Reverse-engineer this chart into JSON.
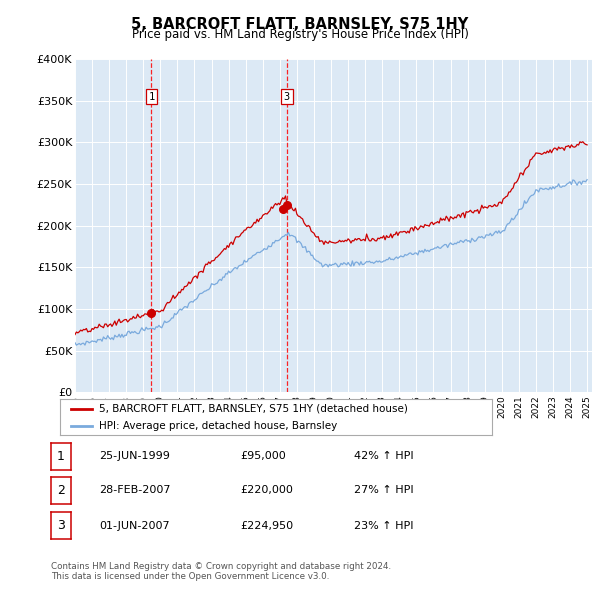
{
  "title": "5, BARCROFT FLATT, BARNSLEY, S75 1HY",
  "subtitle": "Price paid vs. HM Land Registry's House Price Index (HPI)",
  "background_color": "#dce9f5",
  "red_line_color": "#cc0000",
  "blue_line_color": "#7aaadd",
  "legend_red_label": "5, BARCROFT FLATT, BARNSLEY, S75 1HY (detached house)",
  "legend_blue_label": "HPI: Average price, detached house, Barnsley",
  "t1_year": 1999.48,
  "t1_price": 95000,
  "t2_year": 2007.16,
  "t2_price": 220000,
  "t3_year": 2007.41,
  "t3_price": 224950,
  "footer_line1": "Contains HM Land Registry data © Crown copyright and database right 2024.",
  "footer_line2": "This data is licensed under the Open Government Licence v3.0.",
  "yticks": [
    0,
    50000,
    100000,
    150000,
    200000,
    250000,
    300000,
    350000,
    400000
  ],
  "ylabels": [
    "£0",
    "£50K",
    "£100K",
    "£150K",
    "£200K",
    "£250K",
    "£300K",
    "£350K",
    "£400K"
  ],
  "table_data": [
    [
      "1",
      "25-JUN-1999",
      "£95,000",
      "42% ↑ HPI"
    ],
    [
      "2",
      "28-FEB-2007",
      "£220,000",
      "27% ↑ HPI"
    ],
    [
      "3",
      "01-JUN-2007",
      "£224,950",
      "23% ↑ HPI"
    ]
  ]
}
